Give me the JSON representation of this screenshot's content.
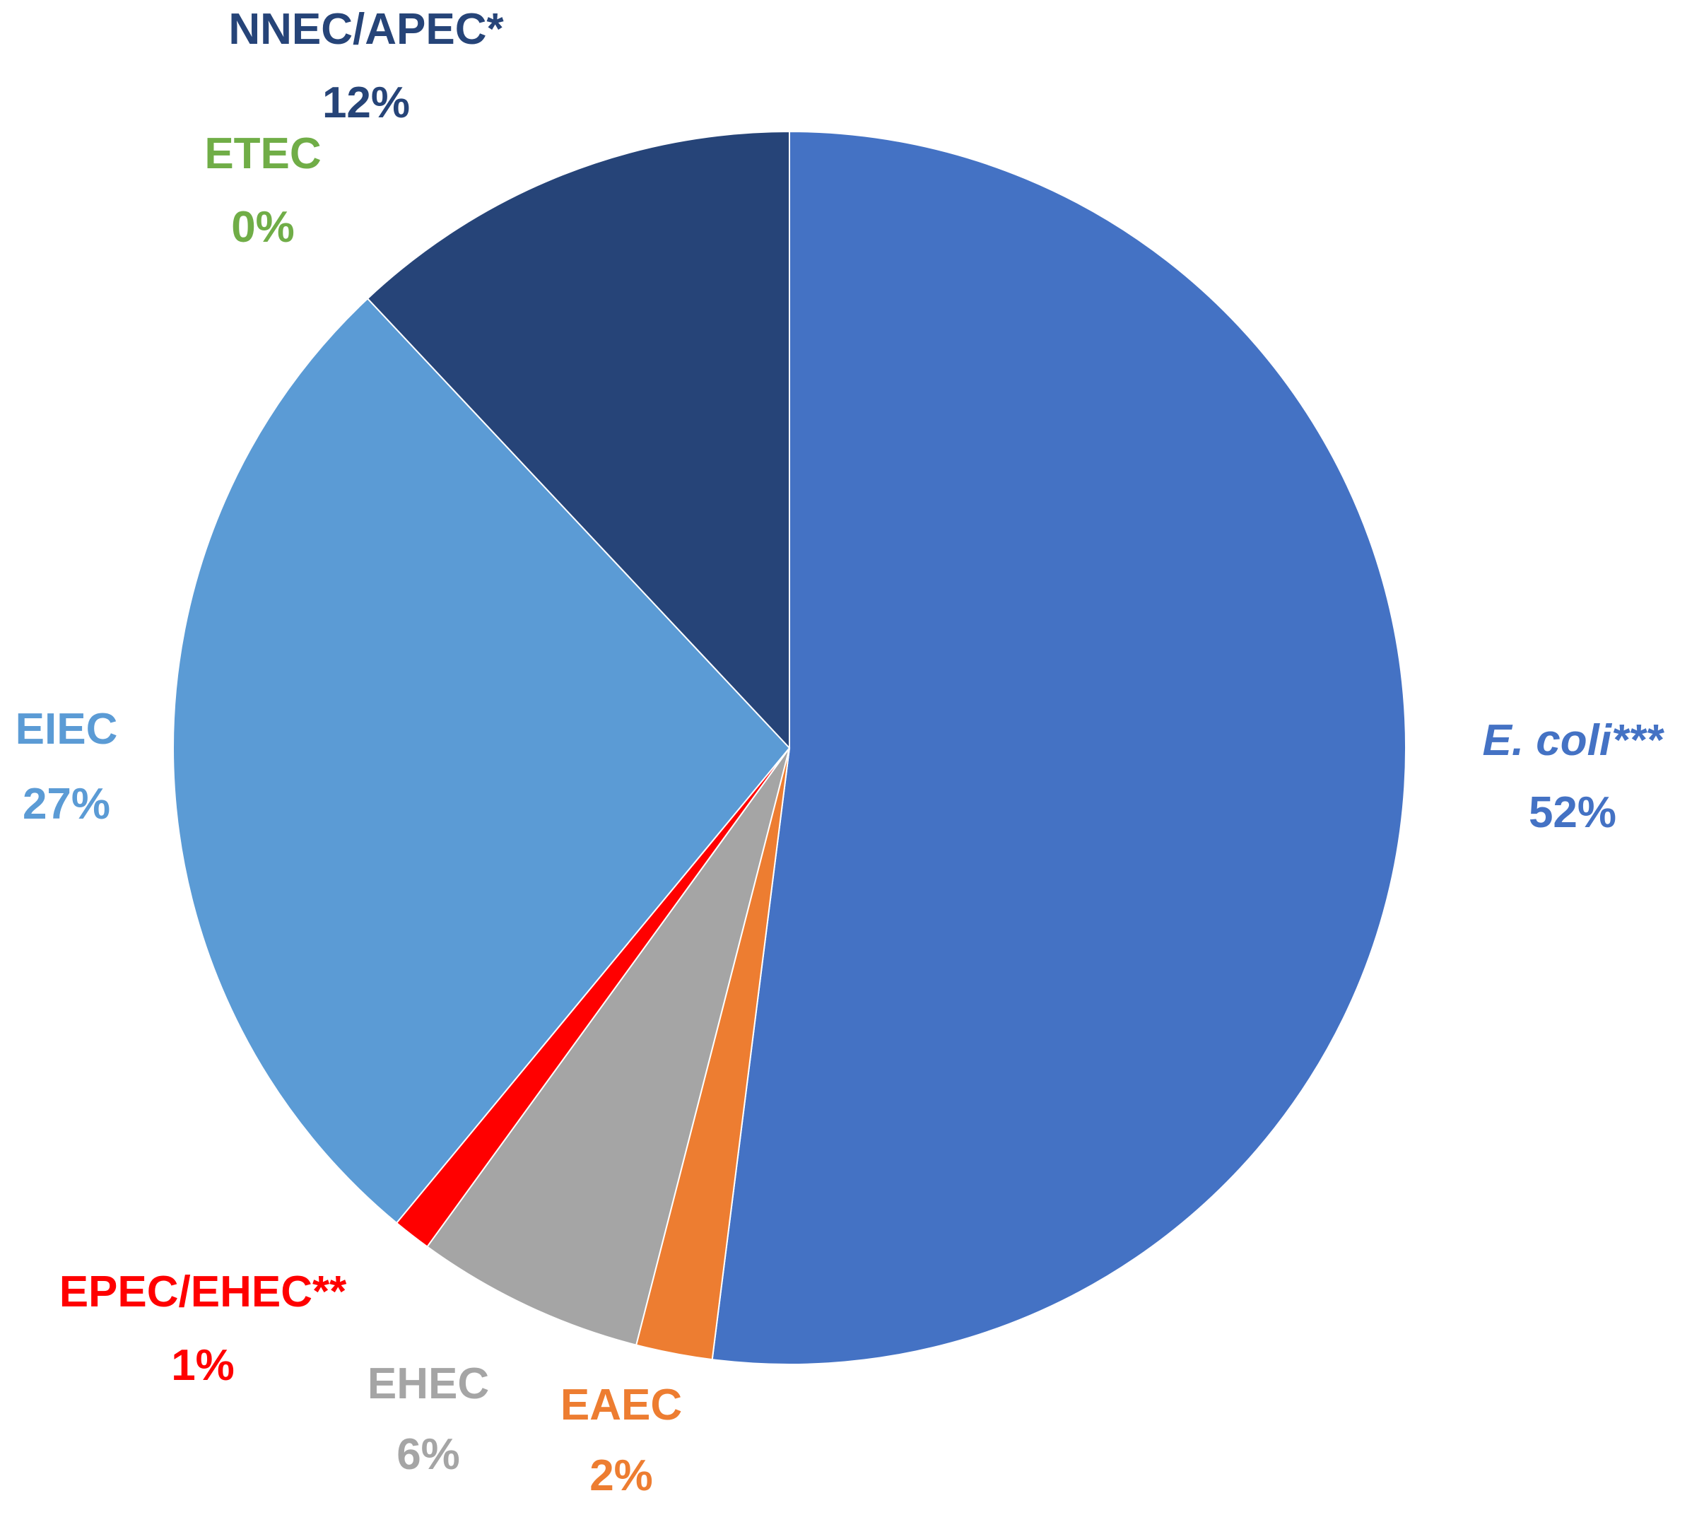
{
  "chart_data": {
    "type": "pie",
    "title": "",
    "slices": [
      {
        "name": "E. coli***",
        "name_italic": "E. coli",
        "name_suffix": "***",
        "value": 52,
        "label": "52%",
        "color": "#4472C4"
      },
      {
        "name": "EAEC",
        "value": 2,
        "label": "2%",
        "color": "#ED7D31"
      },
      {
        "name": "EHEC",
        "value": 6,
        "label": "6%",
        "color": "#A5A5A5"
      },
      {
        "name": "EPEC/EHEC**",
        "value": 1,
        "label": "1%",
        "color": "#FF0000"
      },
      {
        "name": "EIEC",
        "value": 27,
        "label": "27%",
        "color": "#5B9BD5"
      },
      {
        "name": "ETEC",
        "value": 0,
        "label": "0%",
        "color": "#70AD47"
      },
      {
        "name": "NNEC/APEC*",
        "value": 12,
        "label": "12%",
        "color": "#264478"
      }
    ],
    "start_angle_deg": 0,
    "direction": "clockwise",
    "legend": "none"
  }
}
